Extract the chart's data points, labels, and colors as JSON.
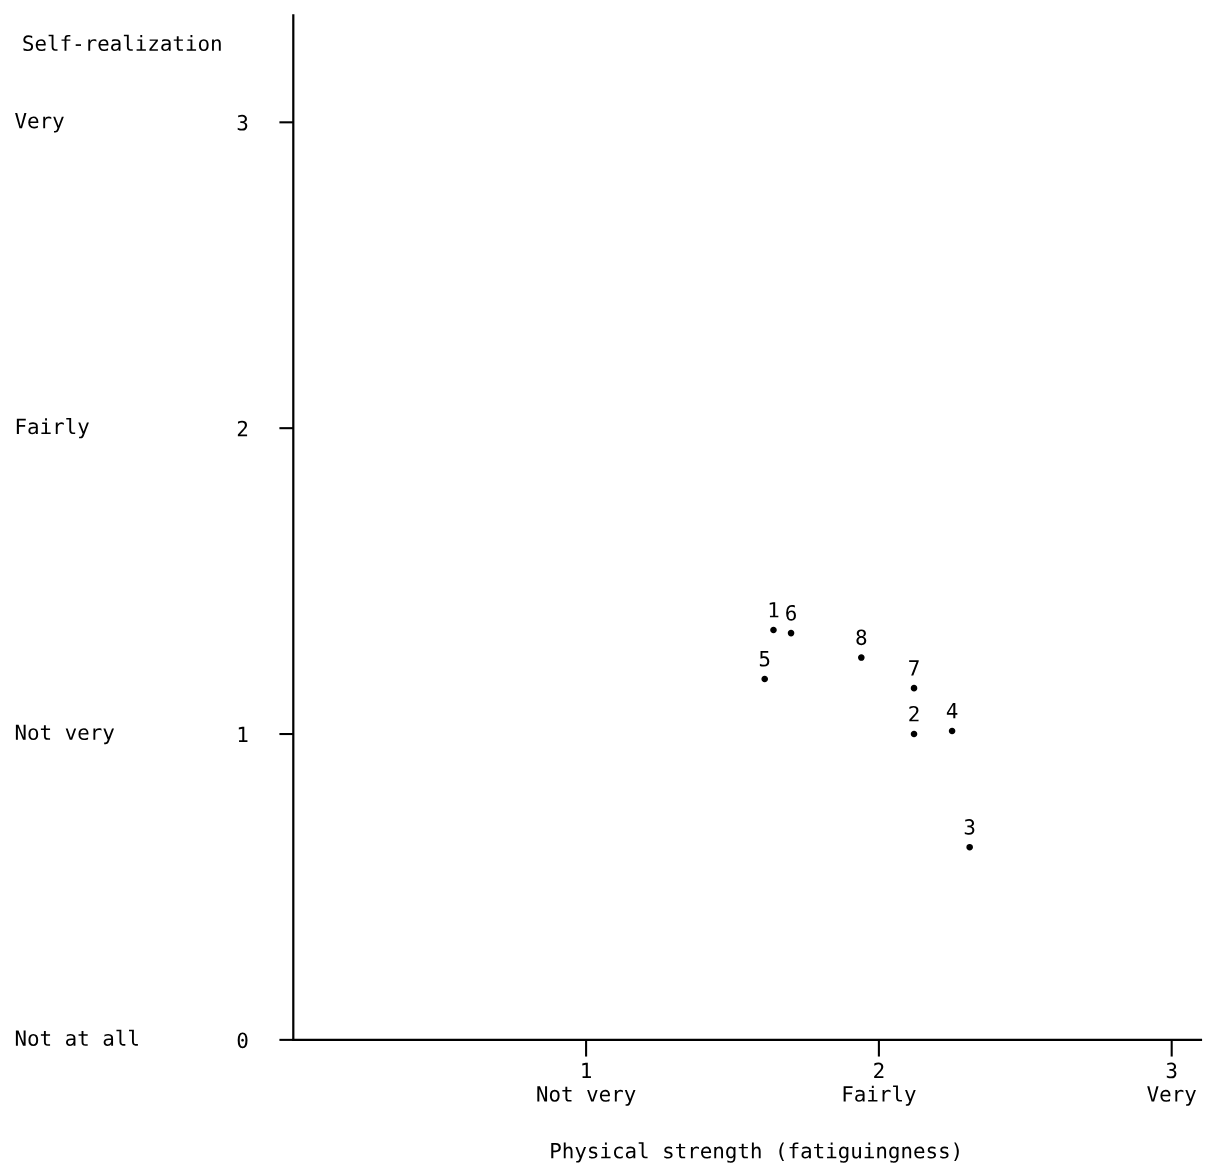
{
  "chart_data": {
    "type": "scatter",
    "xlabel": "Physical strength (fatiguingness)",
    "ylabel": "Self-realization",
    "x": [
      1.64,
      2.12,
      2.31,
      2.25,
      1.61,
      1.7,
      2.12,
      1.94
    ],
    "values": [
      1.34,
      1.0,
      0.63,
      1.01,
      1.18,
      1.33,
      1.15,
      1.25
    ],
    "color": "#000000",
    "marker": "circle",
    "annotations": [
      {
        "text": "1",
        "x": 1.64,
        "y": 1.34
      },
      {
        "text": "2",
        "x": 2.12,
        "y": 1.0
      },
      {
        "text": "3",
        "x": 2.31,
        "y": 0.63
      },
      {
        "text": "4",
        "x": 2.25,
        "y": 1.01
      },
      {
        "text": "5",
        "x": 1.61,
        "y": 1.18
      },
      {
        "text": "6",
        "x": 1.7,
        "y": 1.33
      },
      {
        "text": "7",
        "x": 2.12,
        "y": 1.15
      },
      {
        "text": "8",
        "x": 1.94,
        "y": 1.25
      },
      "Not at all",
      "Not very",
      "Fairly",
      "Very"
    ],
    "xlim": [
      0,
      3.1
    ],
    "ylim": [
      0,
      3.35
    ],
    "xticks": [
      {
        "value": 1,
        "label": "1\nNot very"
      },
      {
        "value": 2,
        "label": "2\nFairly"
      },
      {
        "value": 3,
        "label": "3\nVery"
      }
    ],
    "yticks": [
      0,
      1,
      2,
      3
    ],
    "grid": false,
    "legend": false
  }
}
